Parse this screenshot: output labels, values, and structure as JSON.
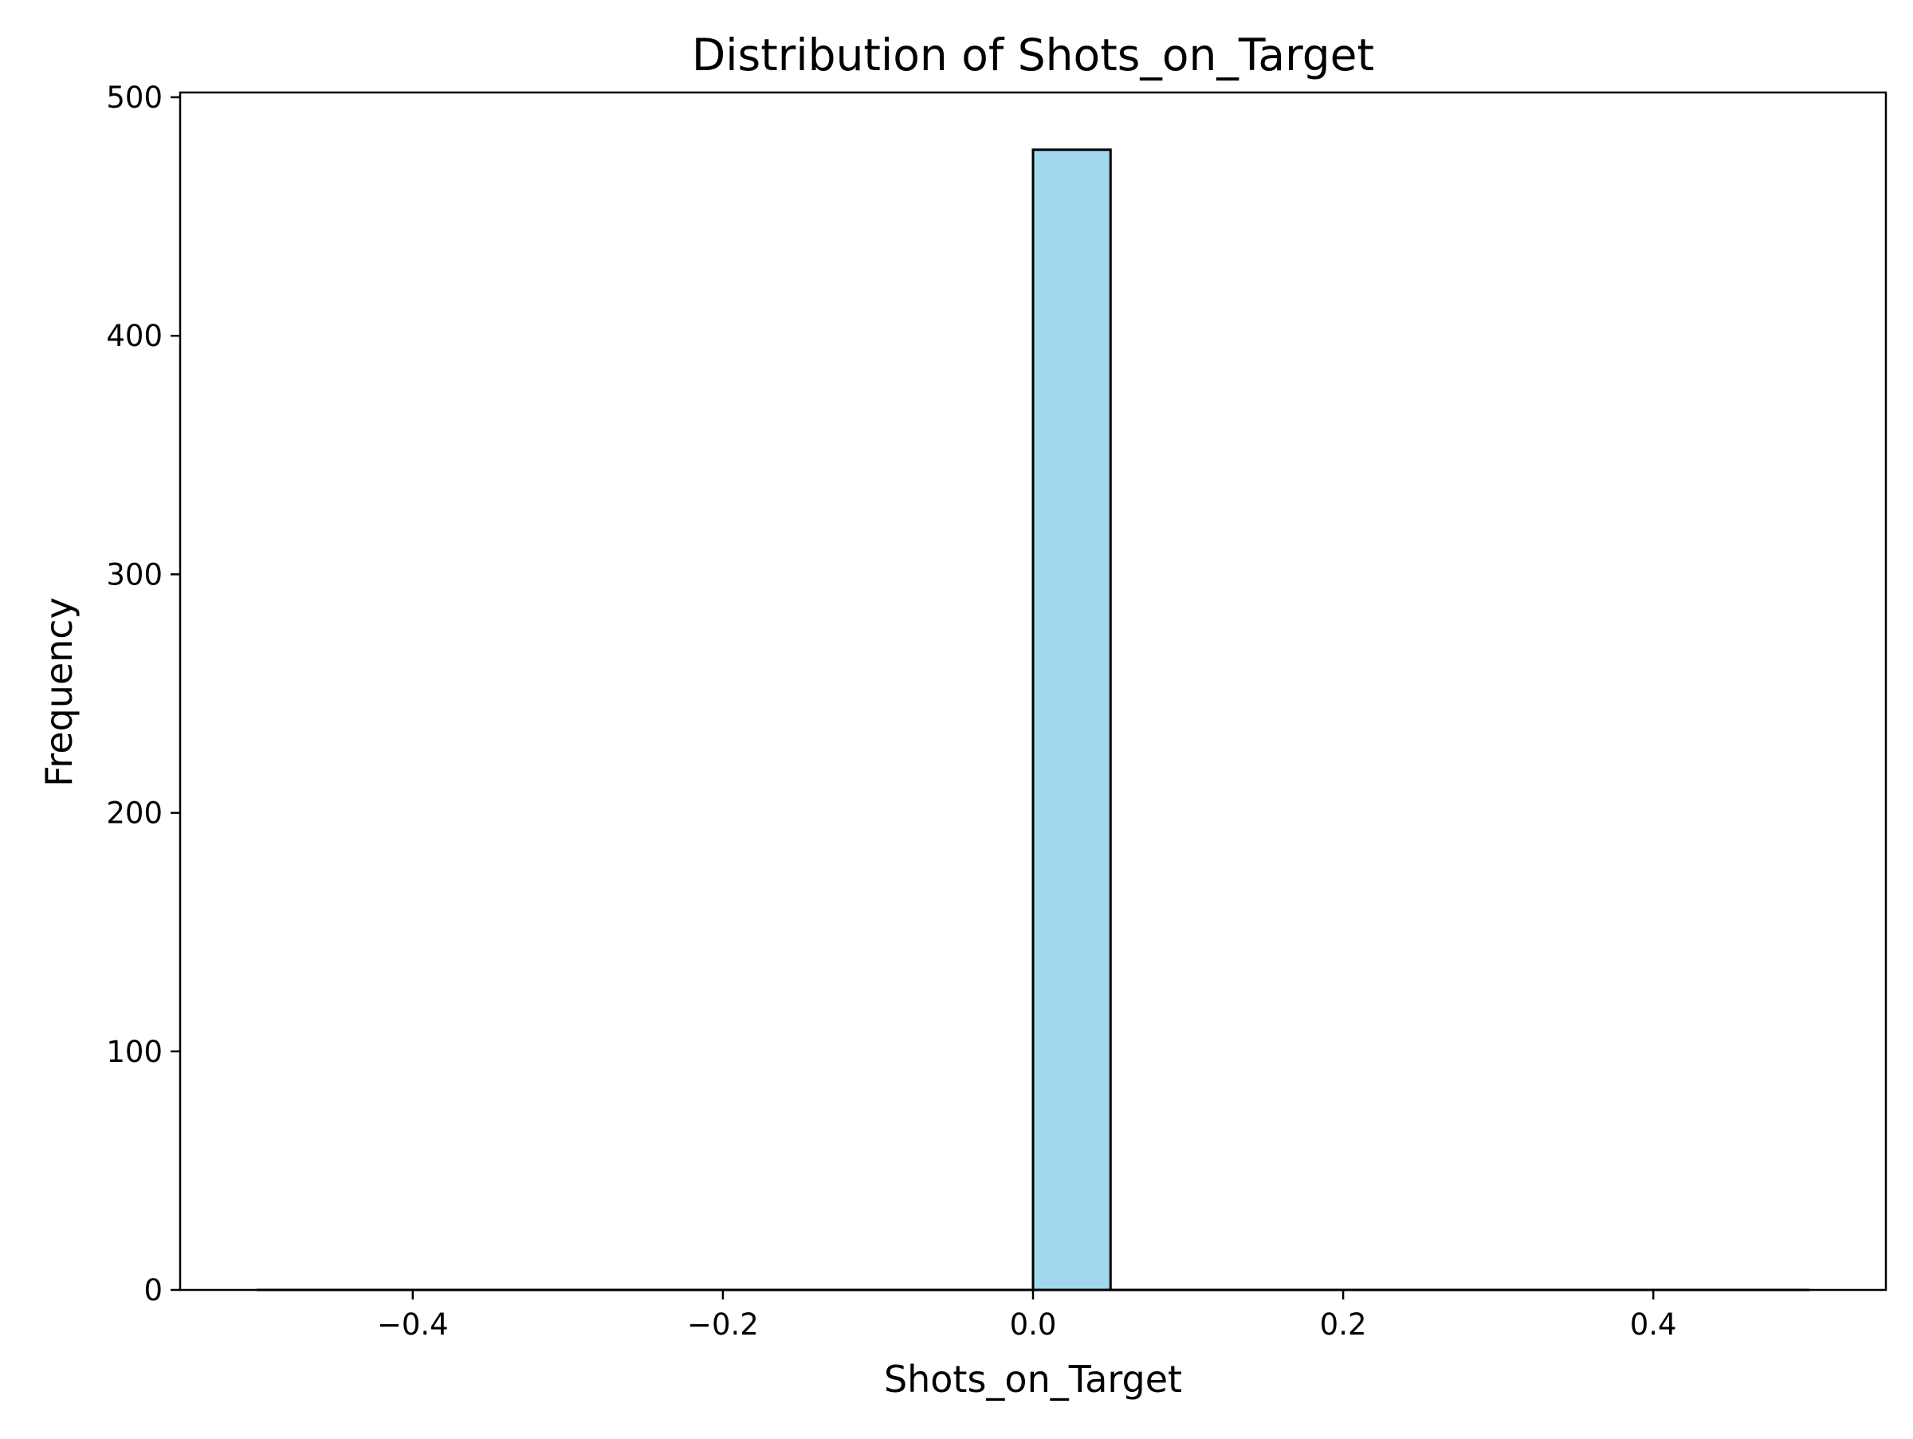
{
  "chart_data": {
    "type": "bar",
    "subtype": "histogram",
    "title": "Distribution of Shots_on_Target",
    "xlabel": "Shots_on_Target",
    "ylabel": "Frequency",
    "xlim": [
      -0.55,
      0.55
    ],
    "ylim": [
      0,
      502
    ],
    "xticks": [
      {
        "value": -0.4,
        "label": "−0.4"
      },
      {
        "value": -0.2,
        "label": "−0.2"
      },
      {
        "value": 0.0,
        "label": "0.0"
      },
      {
        "value": 0.2,
        "label": "0.2"
      },
      {
        "value": 0.4,
        "label": "0.4"
      }
    ],
    "yticks": [
      {
        "value": 0,
        "label": "0"
      },
      {
        "value": 100,
        "label": "100"
      },
      {
        "value": 200,
        "label": "200"
      },
      {
        "value": 300,
        "label": "300"
      },
      {
        "value": 400,
        "label": "400"
      },
      {
        "value": 500,
        "label": "500"
      }
    ],
    "bins": [
      {
        "x0": -0.5,
        "x1": -0.45,
        "count": 0
      },
      {
        "x0": -0.45,
        "x1": -0.4,
        "count": 0
      },
      {
        "x0": -0.4,
        "x1": -0.35,
        "count": 0
      },
      {
        "x0": -0.35,
        "x1": -0.3,
        "count": 0
      },
      {
        "x0": -0.3,
        "x1": -0.25,
        "count": 0
      },
      {
        "x0": -0.25,
        "x1": -0.2,
        "count": 0
      },
      {
        "x0": -0.2,
        "x1": -0.15,
        "count": 0
      },
      {
        "x0": -0.15,
        "x1": -0.1,
        "count": 0
      },
      {
        "x0": -0.1,
        "x1": -0.05,
        "count": 0
      },
      {
        "x0": -0.05,
        "x1": 0.0,
        "count": 0
      },
      {
        "x0": 0.0,
        "x1": 0.05,
        "count": 478
      },
      {
        "x0": 0.05,
        "x1": 0.1,
        "count": 0
      },
      {
        "x0": 0.1,
        "x1": 0.15,
        "count": 0
      },
      {
        "x0": 0.15,
        "x1": 0.2,
        "count": 0
      },
      {
        "x0": 0.2,
        "x1": 0.25,
        "count": 0
      },
      {
        "x0": 0.25,
        "x1": 0.3,
        "count": 0
      },
      {
        "x0": 0.3,
        "x1": 0.35,
        "count": 0
      },
      {
        "x0": 0.35,
        "x1": 0.4,
        "count": 0
      },
      {
        "x0": 0.4,
        "x1": 0.45,
        "count": 0
      },
      {
        "x0": 0.45,
        "x1": 0.5,
        "count": 0
      }
    ],
    "bar_color": "#a1d8ee",
    "edge_color": "#000000",
    "grid": false
  }
}
